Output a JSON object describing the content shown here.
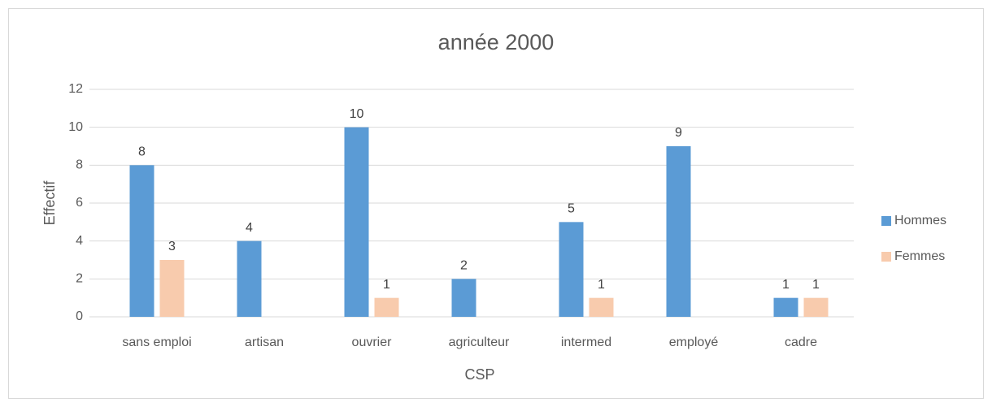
{
  "chart_data": {
    "type": "bar",
    "title": "année 2000",
    "x_label": "CSP",
    "y_label": "Effectif",
    "categories": [
      "sans emploi",
      "artisan",
      "ouvrier",
      "agriculteur",
      "intermed",
      "employé",
      "cadre"
    ],
    "series": [
      {
        "name": "Hommes",
        "color": "#5b9bd5",
        "values": [
          8,
          4,
          10,
          2,
          5,
          9,
          1
        ]
      },
      {
        "name": "Femmes",
        "color": "#f8cbad",
        "values": [
          3,
          null,
          1,
          null,
          1,
          null,
          1
        ]
      }
    ],
    "ylim": [
      0,
      12
    ],
    "yticks": [
      0,
      2,
      4,
      6,
      8,
      10,
      12
    ],
    "grid": true,
    "legend": "right"
  }
}
